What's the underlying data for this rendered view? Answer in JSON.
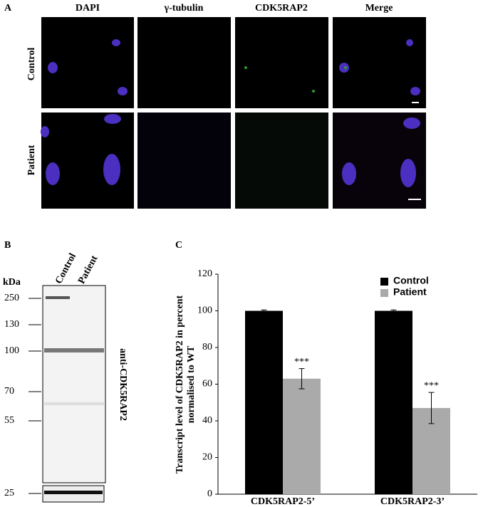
{
  "panel_a": {
    "label": "A",
    "columns": [
      "DAPI",
      "γ-tubulin",
      "CDK5RAP2",
      "Merge"
    ],
    "rows": [
      "Control",
      "Patient"
    ]
  },
  "panel_b": {
    "label": "B",
    "lanes": [
      "Control",
      "Patient"
    ],
    "unit": "kDa",
    "markers": [
      250,
      130,
      100,
      70,
      55,
      25
    ],
    "antibody": "anti-CDK5RAP2"
  },
  "chart_data": {
    "type": "bar",
    "label": "C",
    "ylabel": [
      "Transcript level of CDK5RAP2 in percent",
      "normalised to WT"
    ],
    "categories": [
      "CDK5RAP2-5’",
      "CDK5RAP2-3’"
    ],
    "series": [
      {
        "name": "Control",
        "color": "#000000",
        "values": [
          100,
          100
        ],
        "errors": [
          0.5,
          0.5
        ]
      },
      {
        "name": "Patient",
        "color": "#aaaaaa",
        "values": [
          63,
          47
        ],
        "errors": [
          5.5,
          8.5
        ]
      }
    ],
    "annotations": [
      "***",
      "***"
    ],
    "ylim": [
      0,
      120
    ],
    "yticks": [
      0,
      20,
      40,
      60,
      80,
      100,
      120
    ],
    "legend": "upper-right"
  }
}
